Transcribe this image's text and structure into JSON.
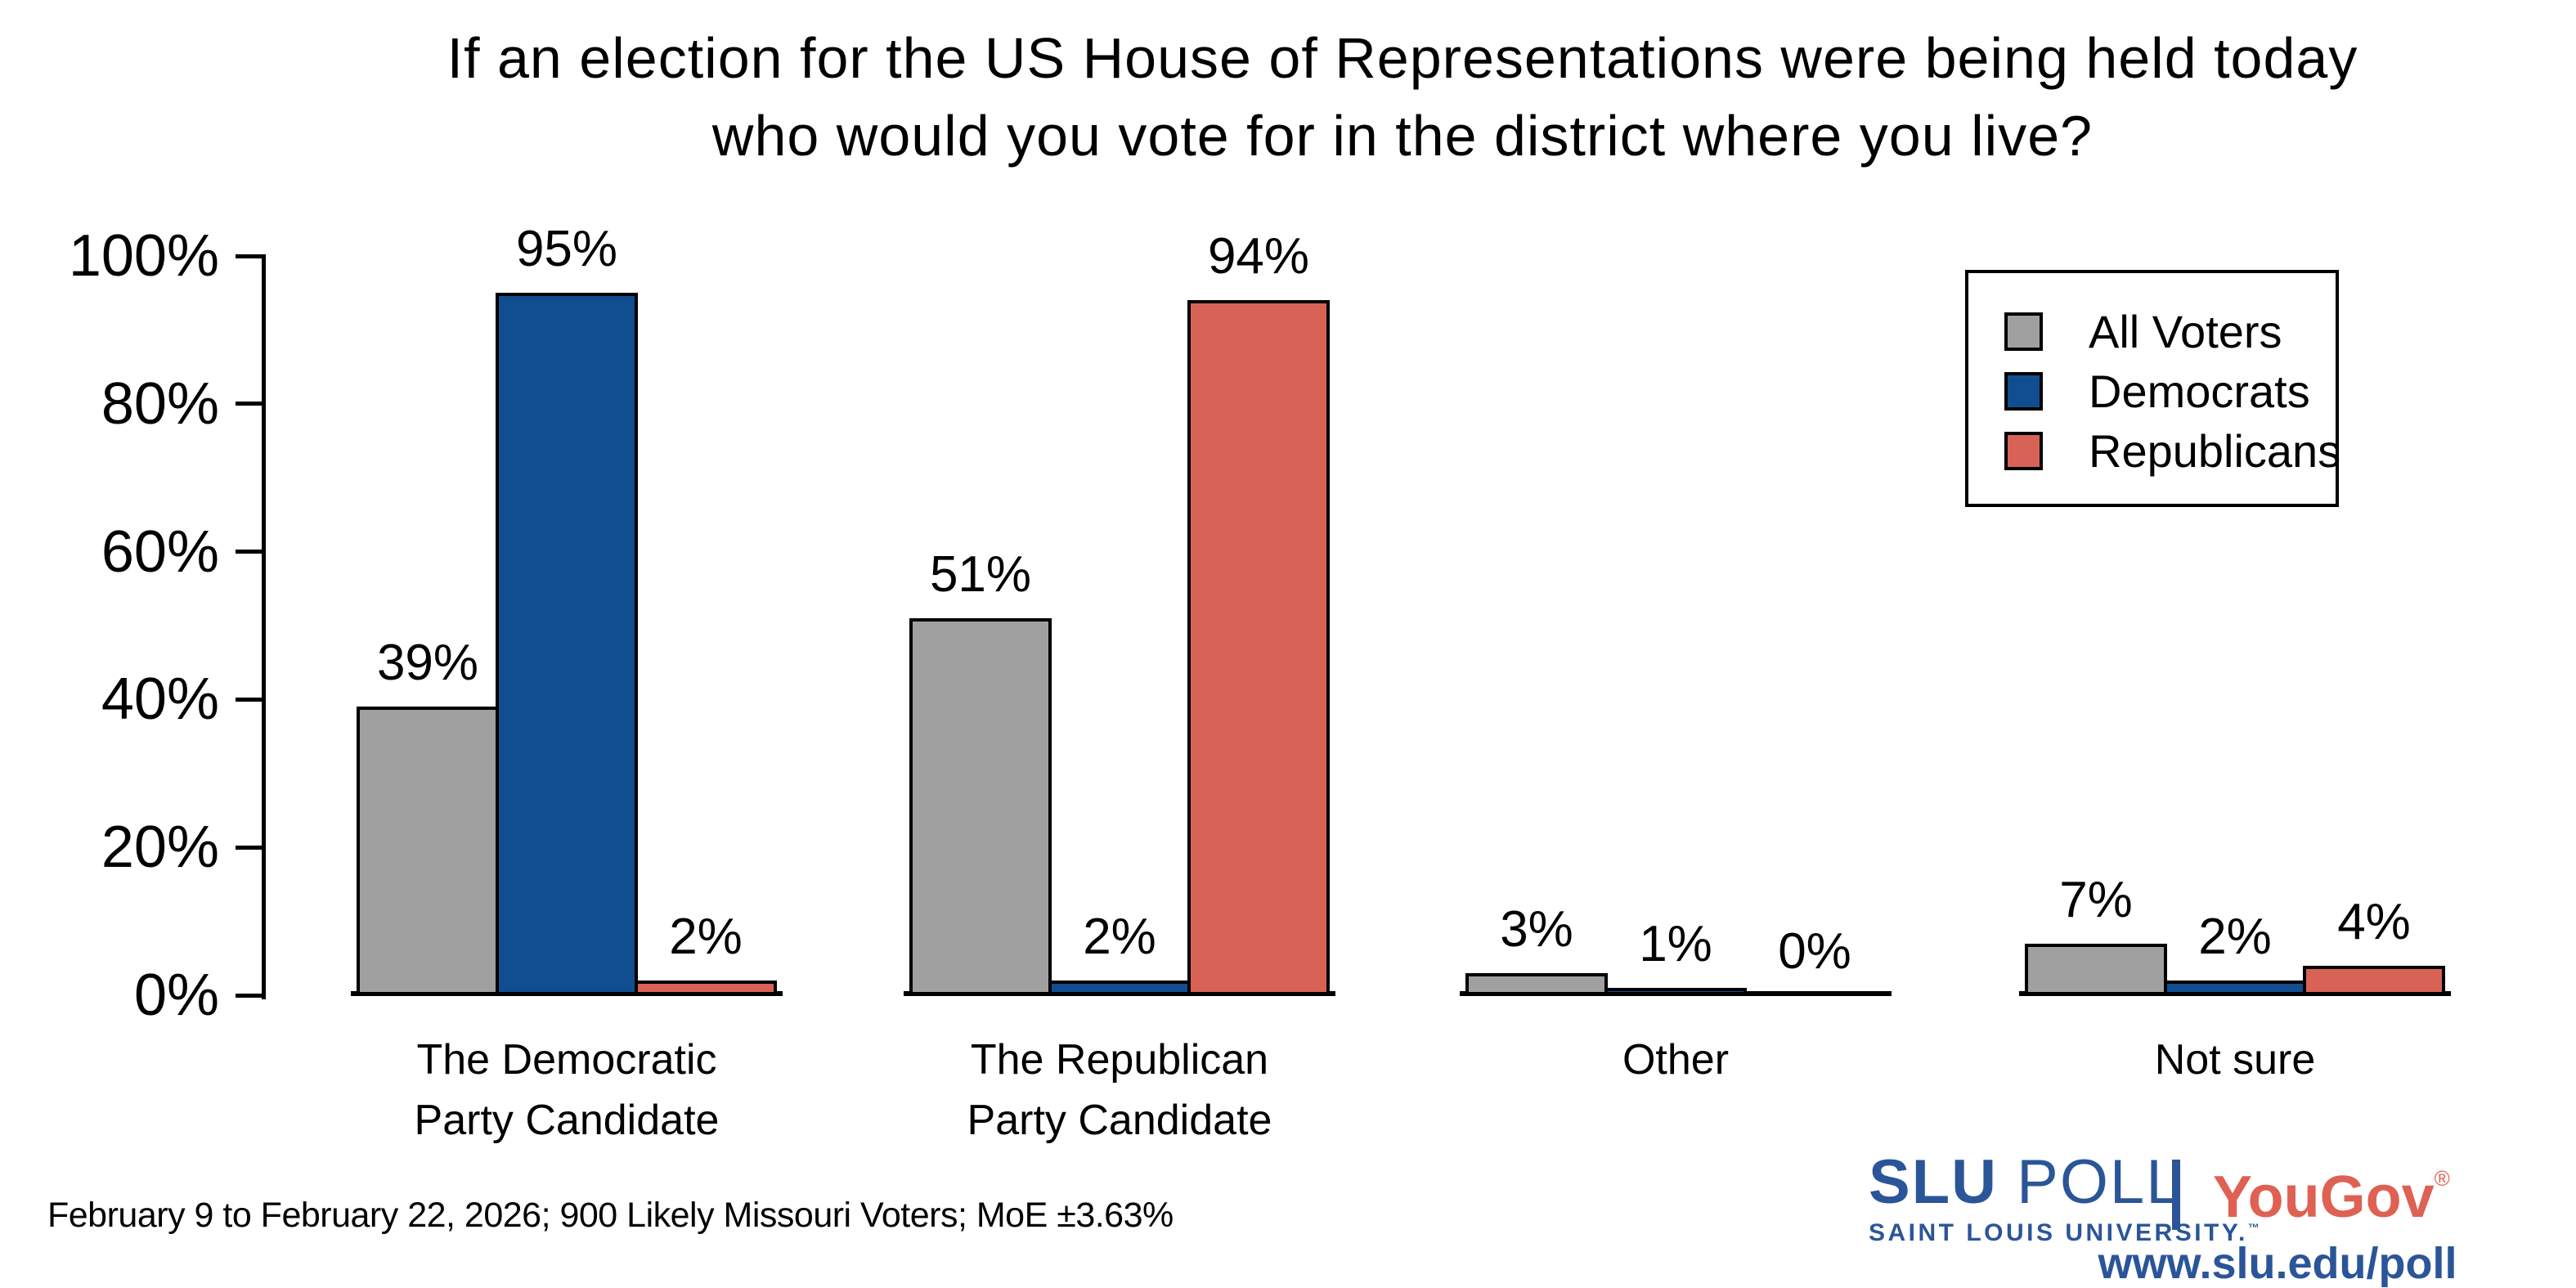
{
  "title": {
    "line1": "If an election for the US House of Representations were being held today",
    "line2": "who would you vote for in the district where you live?"
  },
  "chart_data": {
    "type": "bar",
    "title": "If an election for the US House of Representations were being held today who would you vote for in the district where you live?",
    "categories": [
      "The Democratic Party Candidate",
      "The Republican Party Candidate",
      "Other",
      "Not sure"
    ],
    "category_label_lines": [
      [
        "The Democratic",
        "Party Candidate"
      ],
      [
        "The Republican",
        "Party Candidate"
      ],
      [
        "Other"
      ],
      [
        "Not sure"
      ]
    ],
    "series": [
      {
        "name": "All Voters",
        "color": "#A0A0A0",
        "values": [
          39,
          51,
          3,
          7
        ]
      },
      {
        "name": "Democrats",
        "color": "#114E90",
        "values": [
          95,
          2,
          1,
          2
        ]
      },
      {
        "name": "Republicans",
        "color": "#D96256",
        "values": [
          2,
          94,
          0,
          4
        ]
      }
    ],
    "value_label_suffix": "%",
    "ylabel": "",
    "xlabel": "",
    "ylim": [
      0,
      100
    ],
    "y_ticks": [
      {
        "value": 0,
        "label": "0%"
      },
      {
        "value": 20,
        "label": "20%"
      },
      {
        "value": 40,
        "label": "40%"
      },
      {
        "value": 60,
        "label": "60%"
      },
      {
        "value": 80,
        "label": "80%"
      },
      {
        "value": 100,
        "label": "100%"
      }
    ],
    "grid": false,
    "legend_position": "top-right",
    "bar_outline_color": "#000000"
  },
  "footnote": "February 9 to February 22, 2026; 900 Likely Missouri Voters; MoE ±3.63%",
  "branding": {
    "slu_bold": "SLU",
    "slu_light": "POLL",
    "slu_subtitle": "SAINT LOUIS UNIVERSITY.",
    "slu_trademark": "™",
    "slu_color": "#2B5599",
    "yougov_name": "YouGov",
    "yougov_registered": "®",
    "yougov_color": "#DE6153",
    "url": "www.slu.edu/poll"
  }
}
